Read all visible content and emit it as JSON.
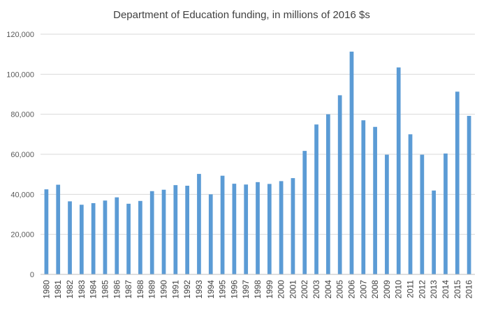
{
  "chart_data": {
    "type": "bar",
    "title": "Department of Education funding, in millions of 2016 $s",
    "xlabel": "",
    "ylabel": "",
    "ylim": [
      0,
      120000
    ],
    "yticks": [
      0,
      20000,
      40000,
      60000,
      80000,
      100000,
      120000
    ],
    "ytick_labels": [
      "0",
      "20,000",
      "40,000",
      "60,000",
      "80,000",
      "100,000",
      "120,000"
    ],
    "grid": true,
    "legend": "none",
    "bar_color": "#5b9bd5",
    "categories": [
      "1980",
      "1981",
      "1982",
      "1983",
      "1984",
      "1985",
      "1986",
      "1987",
      "1988",
      "1989",
      "1990",
      "1991",
      "1992",
      "1993",
      "1994",
      "1995",
      "1996",
      "1997",
      "1998",
      "1999",
      "2000",
      "2001",
      "2002",
      "2003",
      "2004",
      "2005",
      "2006",
      "2007",
      "2008",
      "2009",
      "2010",
      "2011",
      "2012",
      "2013",
      "2014",
      "2015",
      "2016"
    ],
    "values": [
      42500,
      44800,
      36500,
      34800,
      35600,
      36900,
      38500,
      35300,
      36700,
      41600,
      42300,
      44600,
      44300,
      50200,
      40000,
      49300,
      45300,
      44900,
      46100,
      45200,
      46600,
      48100,
      61700,
      74900,
      80000,
      89500,
      111300,
      77000,
      73700,
      59800,
      103400,
      70000,
      59800,
      41900,
      60400,
      91300,
      79200
    ]
  }
}
